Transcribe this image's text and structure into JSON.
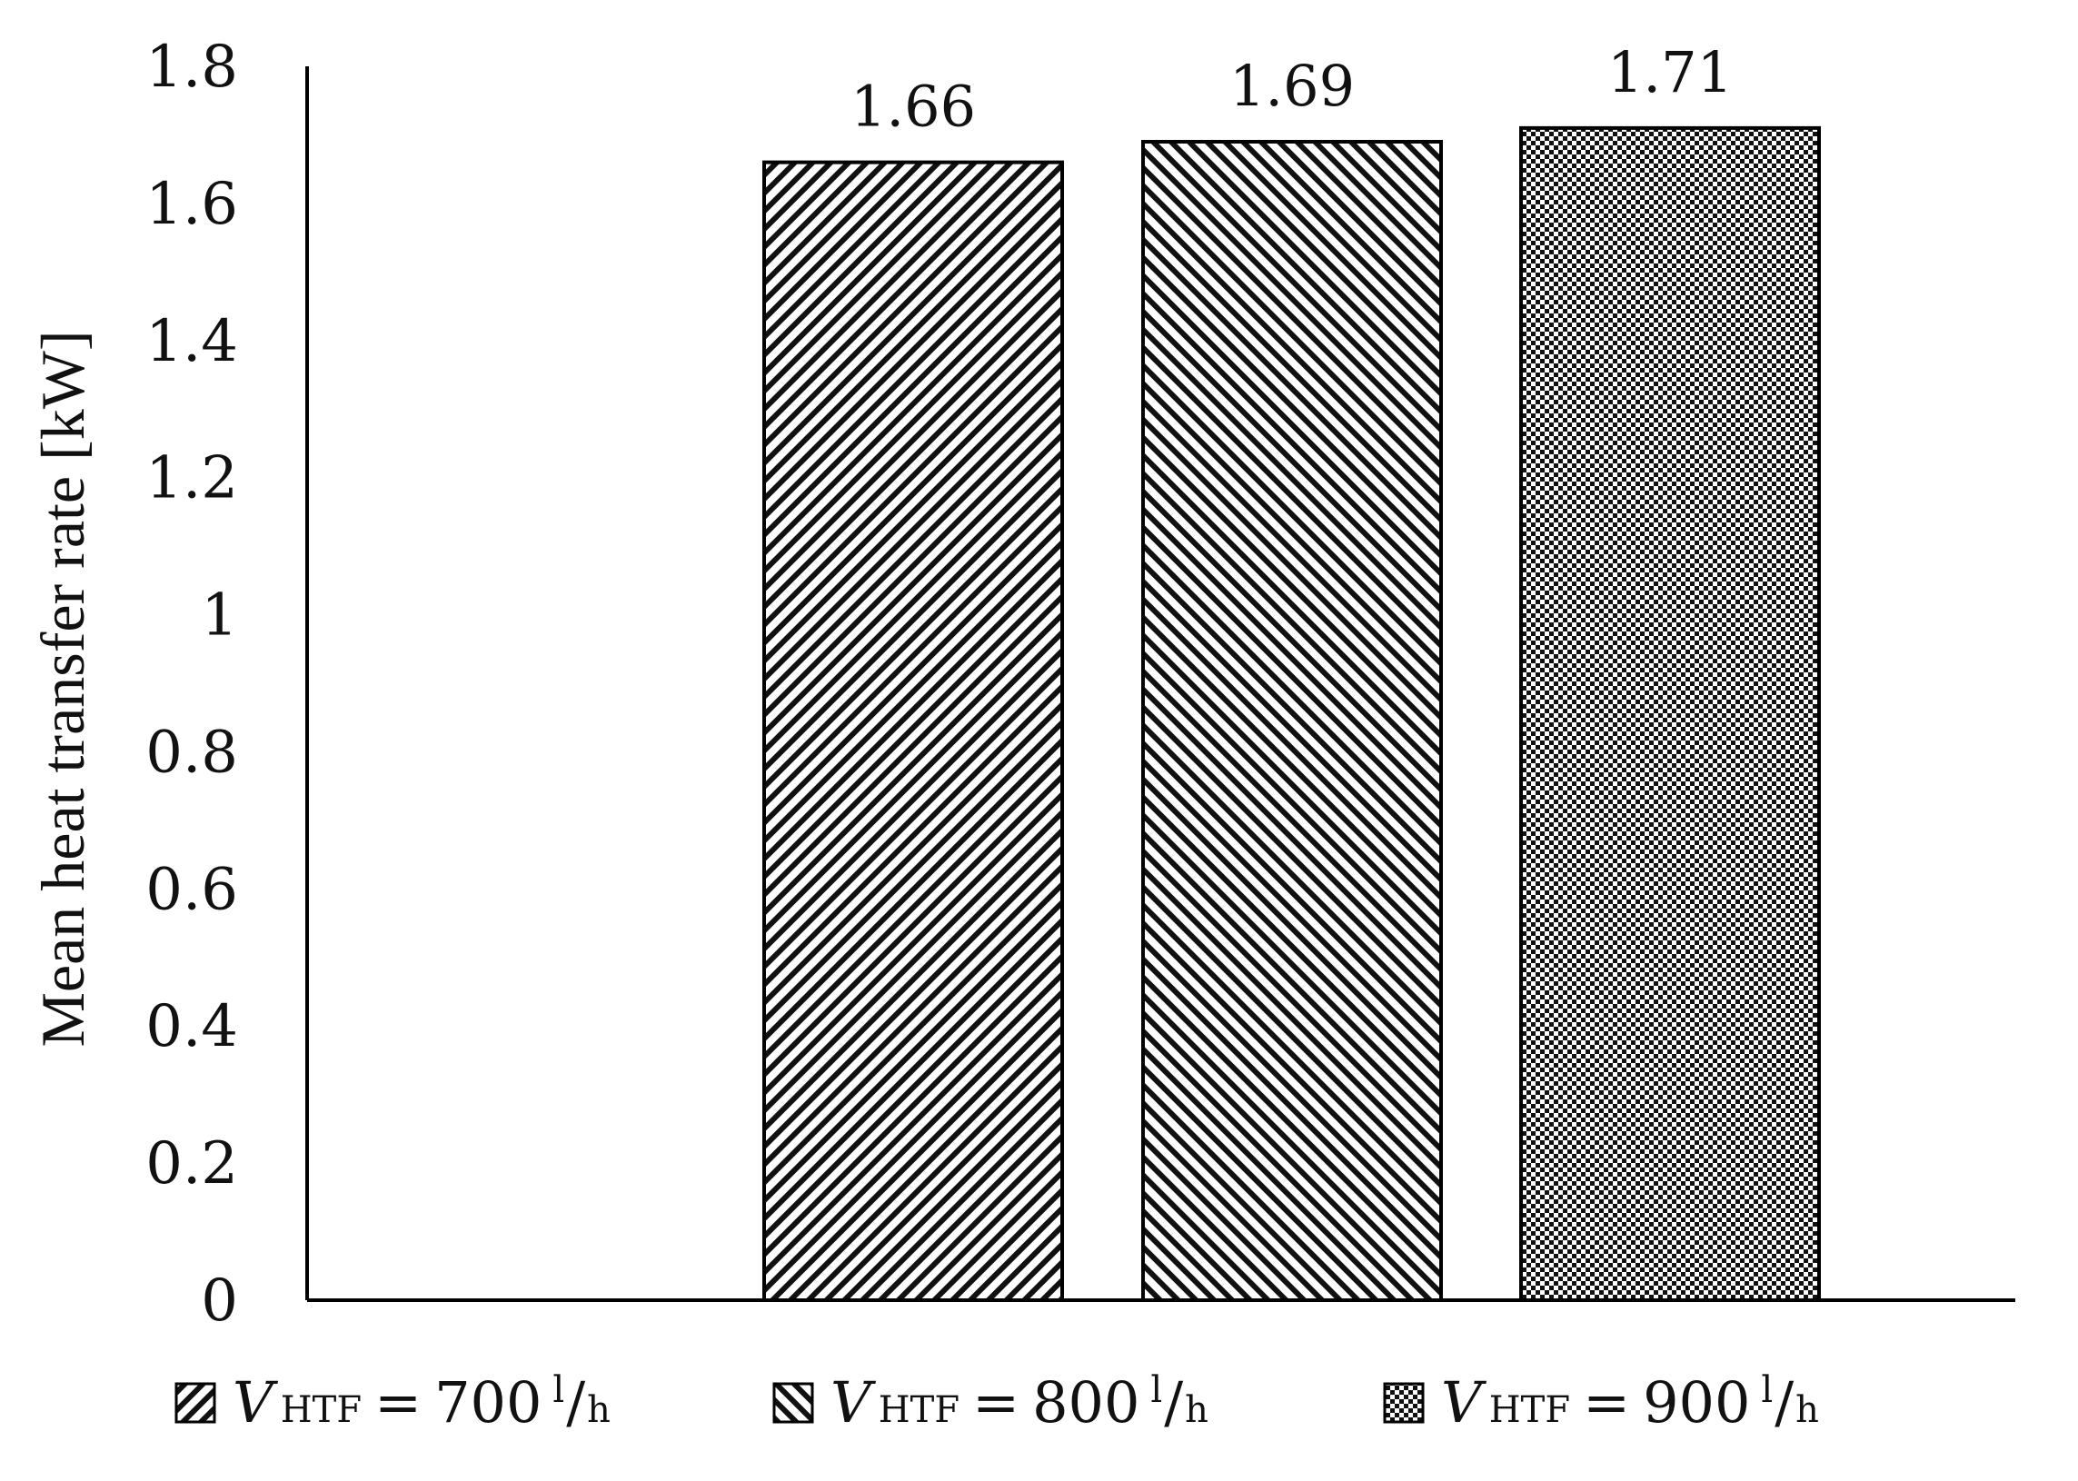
{
  "chart_data": {
    "type": "bar",
    "categories": [
      "700 l/h",
      "800 l/h",
      "900 l/h"
    ],
    "values": [
      1.66,
      1.69,
      1.71
    ],
    "data_labels": [
      "1.66",
      "1.69",
      "1.71"
    ],
    "title": "",
    "xlabel": "",
    "ylabel": "Mean heat transfer rate [kW]",
    "ylim": [
      0,
      1.8
    ],
    "yticks": [
      "0",
      "0.2",
      "0.4",
      "0.6",
      "0.8",
      "1",
      "1.2",
      "1.4",
      "1.6",
      "1.8"
    ],
    "grid": false,
    "legend_position": "bottom",
    "patterns": [
      "diagonal-right",
      "diagonal-left",
      "checker"
    ],
    "legend": [
      {
        "var": "V",
        "sub": "HTF",
        "eq": "=",
        "value": "700",
        "unit_num": "l",
        "unit_sep": "/",
        "unit_den": "h"
      },
      {
        "var": "V",
        "sub": "HTF",
        "eq": "=",
        "value": "800",
        "unit_num": "l",
        "unit_sep": "/",
        "unit_den": "h"
      },
      {
        "var": "V",
        "sub": "HTF",
        "eq": "=",
        "value": "900",
        "unit_num": "l",
        "unit_sep": "/",
        "unit_den": "h"
      }
    ],
    "colors": {
      "bar_fill": "#ffffff",
      "hatch": "#111111",
      "axis": "#000000"
    }
  }
}
